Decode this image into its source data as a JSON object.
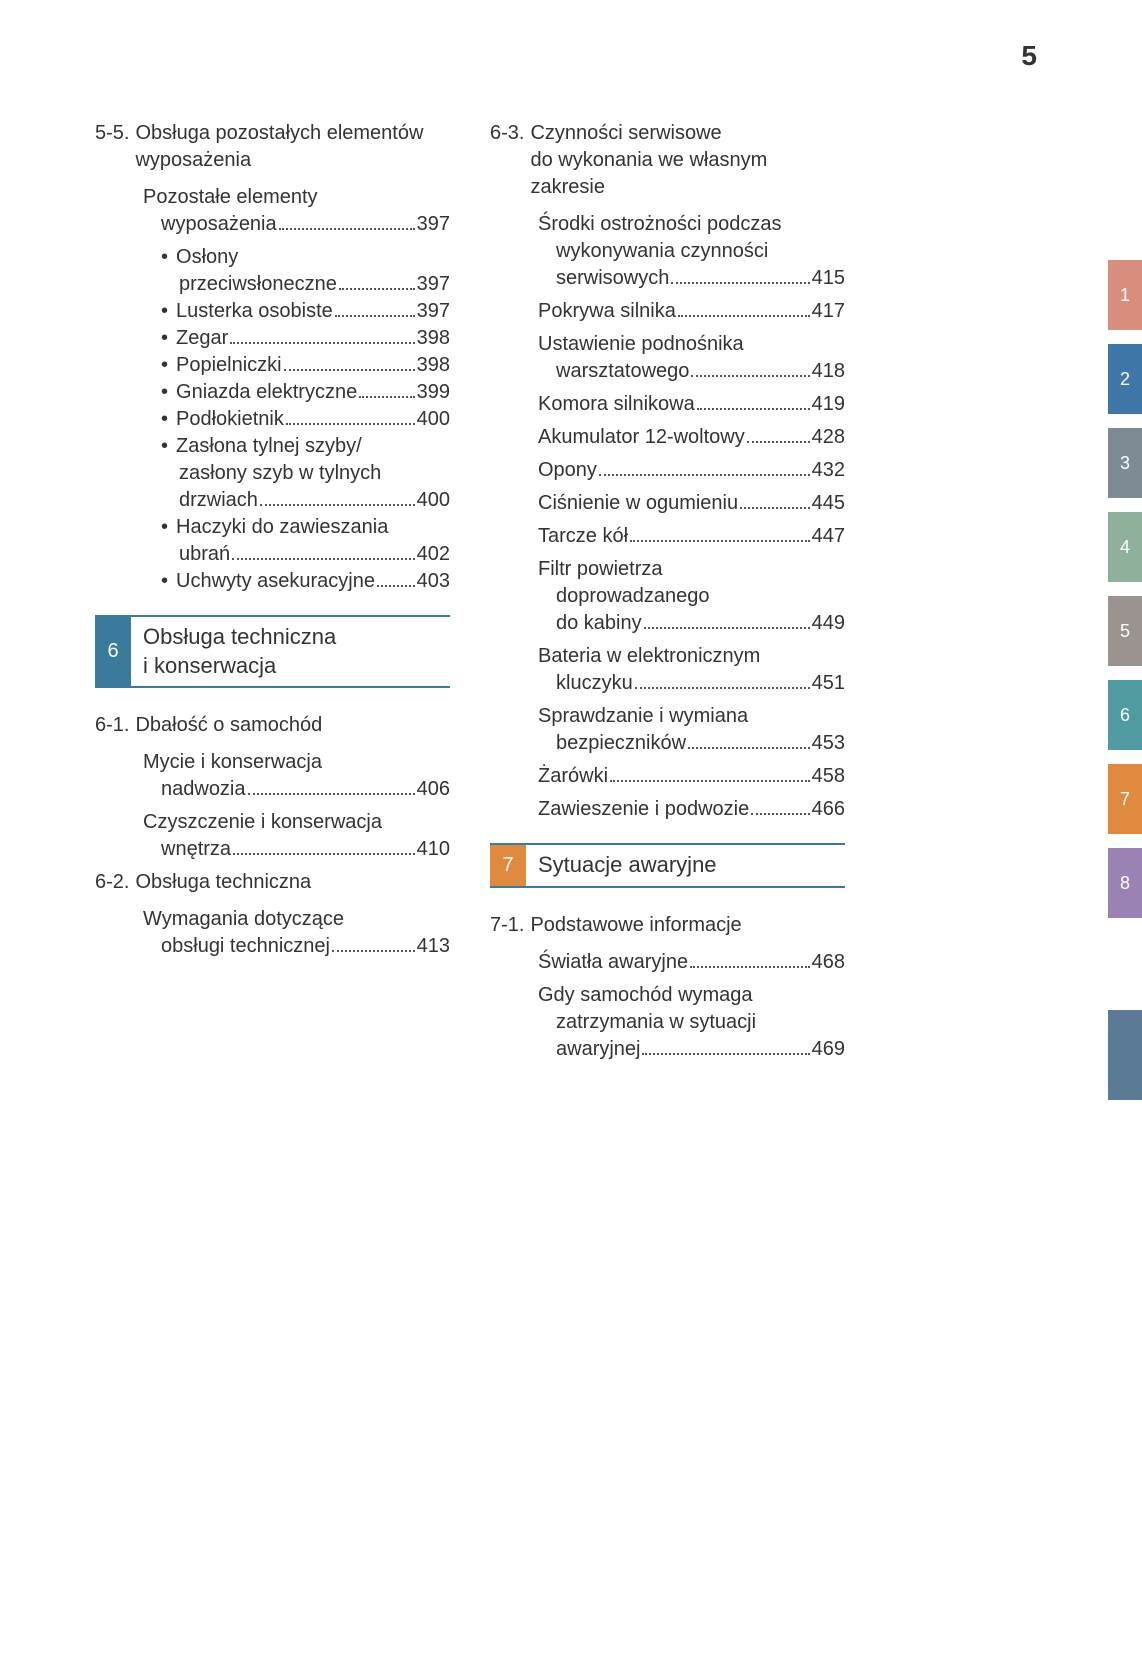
{
  "page_number": "5",
  "colors": {
    "text": "#333333",
    "rule": "#3a7a9a",
    "dot": "#555555"
  },
  "left_column": [
    {
      "type": "section",
      "num": "5-5.",
      "title": "Obsługa pozostałych elementów wyposażenia"
    },
    {
      "type": "toc_multi",
      "lines": [
        "Pozostałe elementy",
        "wyposażenia"
      ],
      "page": "397"
    },
    {
      "type": "bullet_multi",
      "lines": [
        "Osłony",
        "przeciwsłoneczne"
      ],
      "page": "397"
    },
    {
      "type": "bullet",
      "label": "Lusterka osobiste",
      "page": "397"
    },
    {
      "type": "bullet",
      "label": "Zegar",
      "page": "398"
    },
    {
      "type": "bullet",
      "label": "Popielniczki",
      "page": "398"
    },
    {
      "type": "bullet",
      "label": "Gniazda elektryczne",
      "page": "399"
    },
    {
      "type": "bullet",
      "label": "Podłokietnik",
      "page": "400"
    },
    {
      "type": "bullet_multi",
      "lines": [
        "Zasłona tylnej szyby/",
        "zasłony szyb w tylnych",
        "drzwiach"
      ],
      "page": "400"
    },
    {
      "type": "bullet_multi",
      "lines": [
        "Haczyki do zawieszania",
        "ubrań"
      ],
      "page": "402"
    },
    {
      "type": "bullet",
      "label": "Uchwyty asekuracyjne",
      "page": "403"
    },
    {
      "type": "chapter",
      "num": "6",
      "title": "Obsługa techniczna i konserwacja",
      "color": "#3a7a9a"
    },
    {
      "type": "section",
      "num": "6-1.",
      "title": "Dbałość o samochód"
    },
    {
      "type": "toc_multi",
      "lines": [
        "Mycie i konserwacja",
        "nadwozia"
      ],
      "page": "406"
    },
    {
      "type": "toc_multi",
      "lines": [
        "Czyszczenie i konserwacja",
        "wnętrza"
      ],
      "page": "410"
    },
    {
      "type": "section",
      "num": "6-2.",
      "title": "Obsługa techniczna"
    },
    {
      "type": "toc_multi",
      "lines": [
        "Wymagania dotyczące",
        "obsługi technicznej"
      ],
      "page": "413"
    }
  ],
  "right_column": [
    {
      "type": "section",
      "num": "6-3.",
      "title": "Czynności serwisowe do wykonania we własnym zakresie"
    },
    {
      "type": "toc_multi",
      "lines": [
        "Środki ostrożności podczas",
        "wykonywania czynności",
        "serwisowych"
      ],
      "page": "415"
    },
    {
      "type": "toc",
      "label": "Pokrywa silnika",
      "page": "417"
    },
    {
      "type": "toc_multi",
      "lines": [
        "Ustawienie podnośnika",
        "warsztatowego"
      ],
      "page": "418"
    },
    {
      "type": "toc",
      "label": "Komora silnikowa",
      "page": "419"
    },
    {
      "type": "toc",
      "label": "Akumulator 12-woltowy",
      "page": "428"
    },
    {
      "type": "toc",
      "label": "Opony",
      "page": "432"
    },
    {
      "type": "toc",
      "label": "Ciśnienie w ogumieniu",
      "page": "445"
    },
    {
      "type": "toc",
      "label": "Tarcze kół",
      "page": "447"
    },
    {
      "type": "toc_multi",
      "lines": [
        "Filtr powietrza",
        "doprowadzanego",
        "do kabiny"
      ],
      "page": "449"
    },
    {
      "type": "toc_multi",
      "lines": [
        "Bateria w elektronicznym",
        "kluczyku"
      ],
      "page": "451"
    },
    {
      "type": "toc_multi",
      "lines": [
        "Sprawdzanie i wymiana",
        "bezpieczników"
      ],
      "page": "453"
    },
    {
      "type": "toc",
      "label": "Żarówki",
      "page": "458"
    },
    {
      "type": "toc",
      "label": "Zawieszenie i podwozie",
      "page": "466"
    },
    {
      "type": "chapter",
      "num": "7",
      "title": "Sytuacje awaryjne",
      "color": "#e08a3f"
    },
    {
      "type": "section",
      "num": "7-1.",
      "title": "Podstawowe informacje"
    },
    {
      "type": "toc",
      "label": "Światła awaryjne",
      "page": "468"
    },
    {
      "type": "toc_multi",
      "lines": [
        "Gdy samochód wymaga",
        "zatrzymania w sytuacji",
        "awaryjnej"
      ],
      "page": "469"
    }
  ],
  "tabs": [
    {
      "label": "1",
      "color": "#d98e7e"
    },
    {
      "label": "2",
      "color": "#3e77a8"
    },
    {
      "label": "3",
      "color": "#7e8b95"
    },
    {
      "label": "4",
      "color": "#8fb09b"
    },
    {
      "label": "5",
      "color": "#9a9390"
    },
    {
      "label": "6",
      "color": "#4f9ba0"
    },
    {
      "label": "7",
      "color": "#e08a3f"
    },
    {
      "label": "8",
      "color": "#9a82b5"
    }
  ]
}
